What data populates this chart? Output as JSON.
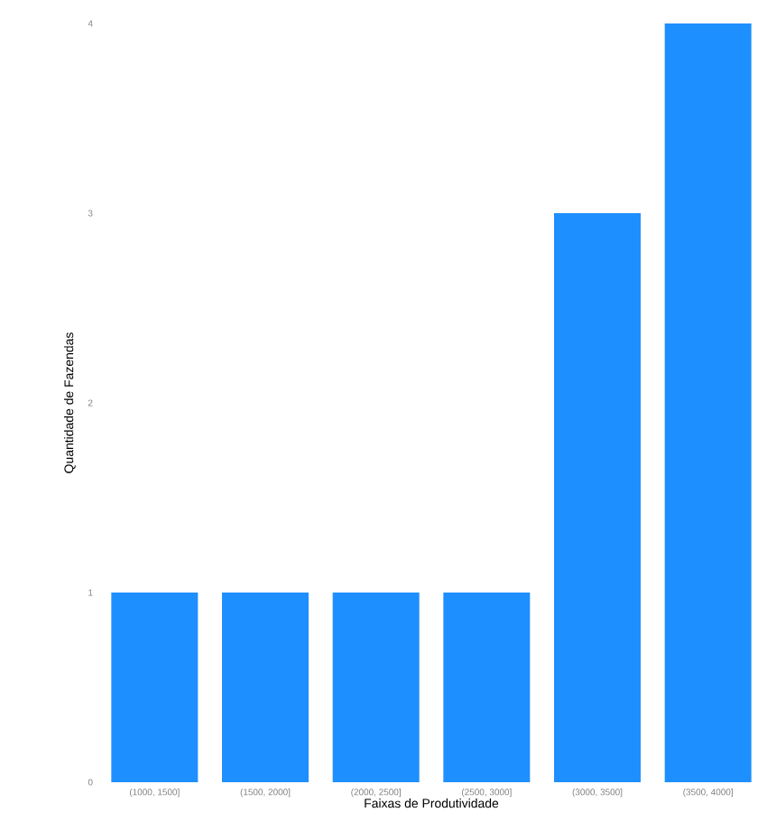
{
  "chart_data": {
    "type": "bar",
    "xlabel": "Faixas de Produtividade",
    "ylabel": "Quantidade de Fazendas",
    "categories": [
      "(1000, 1500]",
      "(1500, 2000]",
      "(2000, 2500]",
      "(2500, 3000]",
      "(3000, 3500]",
      "(3500, 4000]"
    ],
    "values": [
      1,
      1,
      1,
      1,
      3,
      4
    ],
    "color": "#1e8fff",
    "ylim": [
      0,
      4
    ],
    "yticks": [
      0,
      1,
      2,
      3,
      4
    ]
  }
}
